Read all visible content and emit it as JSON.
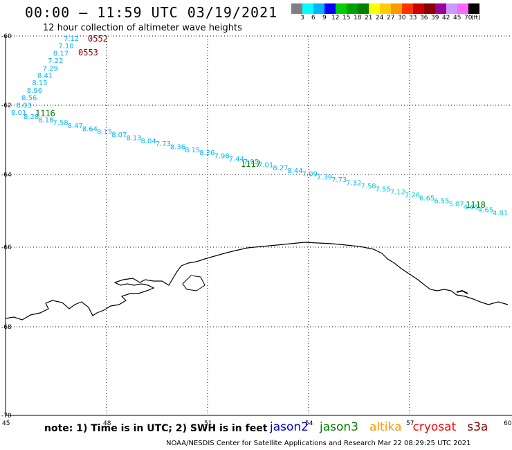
{
  "header": {
    "title": "00:00 – 11:59 UTC 03/19/2021",
    "subtitle": "12 hour collection of altimeter wave heights"
  },
  "legend": {
    "colors": [
      "#808080",
      "#00ffff",
      "#00b4ff",
      "#0000ff",
      "#00d000",
      "#00a000",
      "#008000",
      "#ffff00",
      "#ffcc00",
      "#ff9900",
      "#ff3300",
      "#cc0000",
      "#880000",
      "#990099",
      "#cc99ff",
      "#ff66ff",
      "#000000"
    ],
    "labels": [
      "3",
      "6",
      "9",
      "12",
      "15",
      "18",
      "21",
      "24",
      "27",
      "30",
      "33",
      "36",
      "39",
      "42",
      "45",
      "70",
      "(ft)"
    ]
  },
  "map": {
    "lon_ticks": [
      "45",
      "48",
      "51",
      "54",
      "57",
      "60"
    ],
    "lat_ticks": [
      "-60",
      "-62",
      "-64",
      "-66",
      "-68",
      "-70"
    ],
    "grid": true,
    "track_color": "#00b4ff",
    "track_color_east": "#00ccdd",
    "coast_color": "#000000"
  },
  "track_labels": [
    {
      "time": "0552",
      "color": "#880000"
    },
    {
      "time": "0553",
      "color": "#880000"
    },
    {
      "time": "1116",
      "color": "#008000"
    },
    {
      "time": "1117",
      "color": "#008000"
    },
    {
      "time": "1118",
      "color": "#008000"
    }
  ],
  "wave_values_a": [
    "7.12",
    "7.10",
    "8.17",
    "7.22",
    "7.29",
    "8.41",
    "8.15",
    "8.96",
    "8.56",
    "8.03",
    "8.01"
  ],
  "wave_values_b": [
    "8.28",
    "8.18",
    "7.58",
    "8.47",
    "8.64",
    "8.15",
    "8.07",
    "8.13",
    "8.04",
    "7.73",
    "8.36",
    "8.15",
    "8.26",
    "7.98",
    "7.44",
    "7.95",
    "7.01",
    "8.27",
    "8.44",
    "7.09",
    "7.39",
    "7.73",
    "7.32",
    "7.58",
    "7.55",
    "7.12",
    "7.26",
    "6.65",
    "6.55",
    "5.07",
    "4.65",
    "4.65",
    "4.81"
  ],
  "footer": {
    "note": "note:  1) Time is in UTC;  2) SWH is in feet",
    "satellites": [
      {
        "name": "jason2",
        "color": "#0000cc"
      },
      {
        "name": "jason3",
        "color": "#008000"
      },
      {
        "name": "altika",
        "color": "#ff9900"
      },
      {
        "name": "cryosat",
        "color": "#ff0000"
      },
      {
        "name": "s3a",
        "color": "#880000"
      }
    ],
    "credit": "NOAA/NESDIS Center for Satellite Applications and Research    Mar 22 08:29:25 UTC 2021"
  }
}
